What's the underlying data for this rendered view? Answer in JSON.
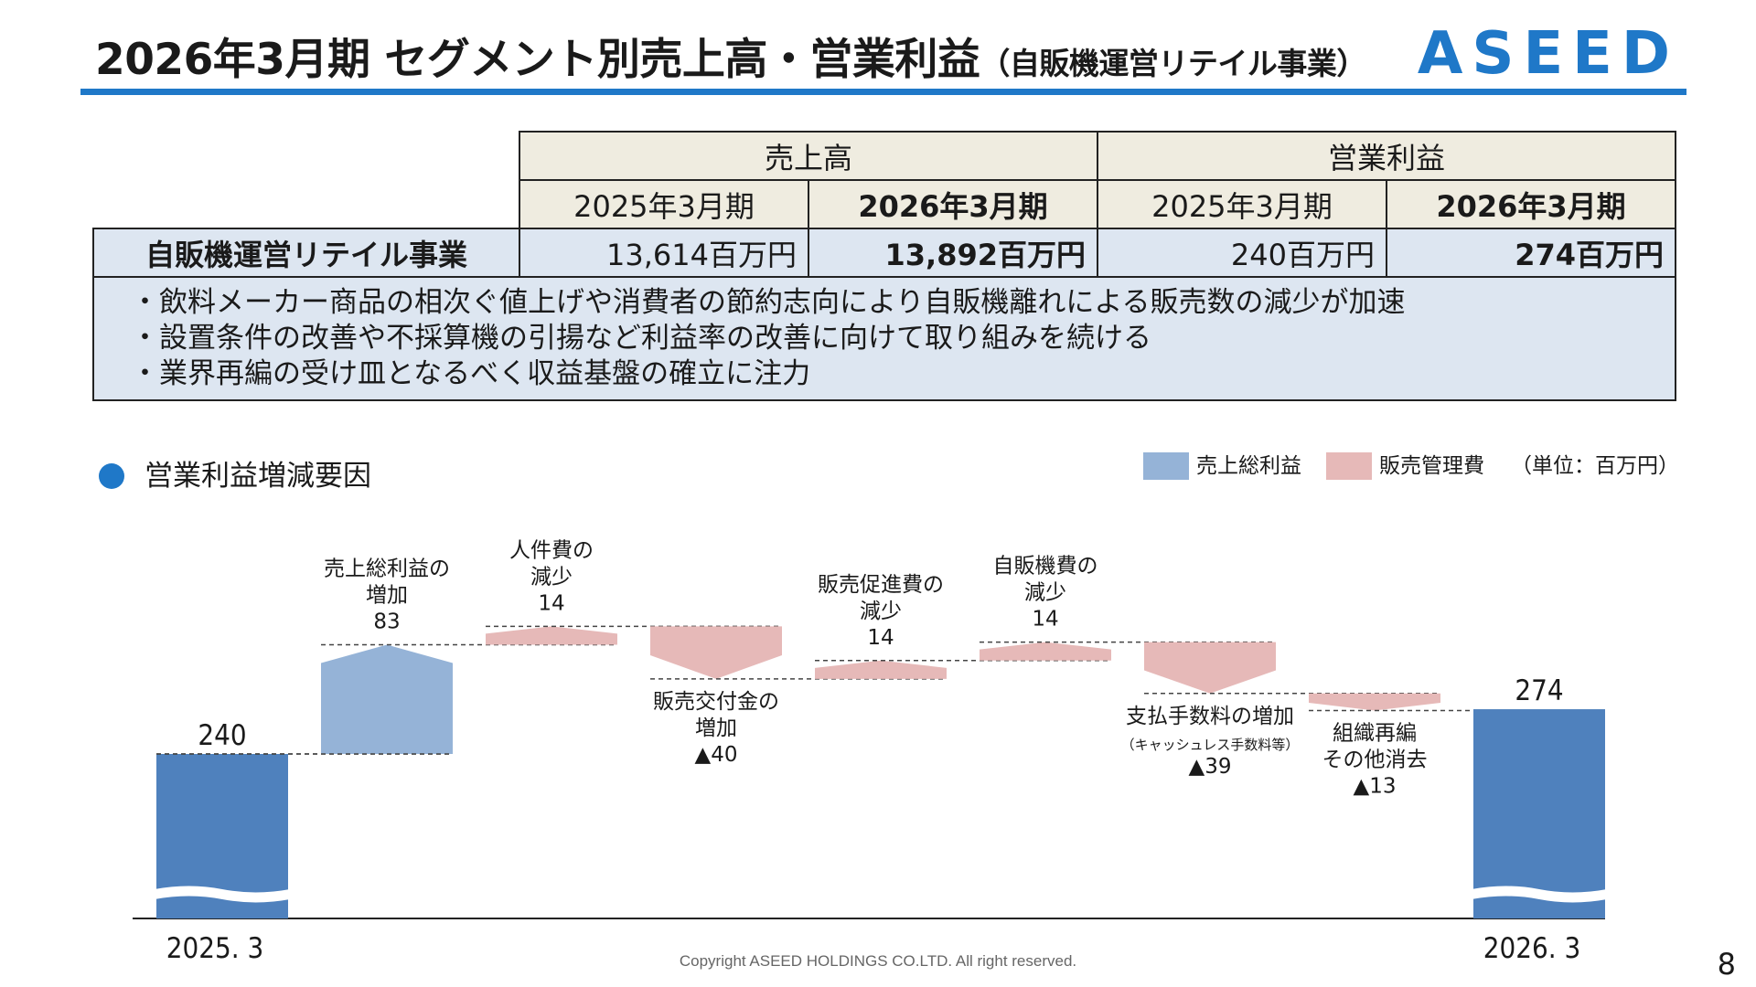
{
  "header": {
    "title": "2026年3月期 セグメント別売上高・営業利益",
    "subtitle": "（自販機運営リテイル事業）",
    "logo": "ASEED"
  },
  "table": {
    "group_sales": "売上高",
    "group_profit": "営業利益",
    "period_prev": "2025年3月期",
    "period_curr": "2026年3月期",
    "row_label": "自販機運営リテイル事業",
    "sales_prev": "13,614百万円",
    "sales_curr": "13,892百万円",
    "profit_prev": "240百万円",
    "profit_curr": "274百万円",
    "notes": [
      "・飲料メーカー商品の相次ぐ値上げや消費者の節約志向により自販機離れによる販売数の減少が加速",
      "・設置条件の改善や不採算機の引揚など利益率の改善に向けて取り組みを続ける",
      "・業界再編の受け皿となるべく収益基盤の確立に注力"
    ]
  },
  "section_title": "営業利益増減要因",
  "legend": {
    "gross": "売上総利益",
    "sga": "販売管理費",
    "unit": "（単位：百万円）"
  },
  "colors": {
    "accent": "#1f78c8",
    "total_bar": "#4f81bd",
    "gross_bar": "#95b3d7",
    "sga_bar": "#e6b9b8",
    "table_header": "#efece0",
    "table_body": "#dde6f1"
  },
  "chart_data": {
    "type": "waterfall",
    "start": {
      "label": "2025. 3",
      "value": 240,
      "value_label": "240"
    },
    "steps": [
      {
        "lines": [
          "売上総利益の",
          "増加",
          "83"
        ],
        "delta": 83,
        "kind": "gross",
        "label_pos": "above"
      },
      {
        "lines": [
          "人件費の",
          "減少",
          "14"
        ],
        "delta": 14,
        "kind": "sga",
        "label_pos": "above"
      },
      {
        "lines": [
          "販売交付金の",
          "増加",
          "▲40"
        ],
        "delta": -40,
        "kind": "sga",
        "label_pos": "below"
      },
      {
        "lines": [
          "販売促進費の",
          "減少",
          "14"
        ],
        "delta": 14,
        "kind": "sga",
        "label_pos": "above"
      },
      {
        "lines": [
          "自販機費の",
          "減少",
          "14"
        ],
        "delta": 14,
        "kind": "sga",
        "label_pos": "above"
      },
      {
        "lines": [
          "支払手数料の増加",
          "（キャッシュレス手数料等）",
          "▲39"
        ],
        "delta": -39,
        "kind": "sga",
        "label_pos": "below"
      },
      {
        "lines": [
          "組織再編",
          "その他消去",
          "▲13"
        ],
        "delta": -13,
        "kind": "sga",
        "label_pos": "below"
      }
    ],
    "end": {
      "label": "2026. 3",
      "value": 274,
      "value_label": "274"
    }
  },
  "footer": {
    "copyright": "Copyright ASEED HOLDINGS CO.LTD. All right reserved.",
    "page": "8"
  }
}
